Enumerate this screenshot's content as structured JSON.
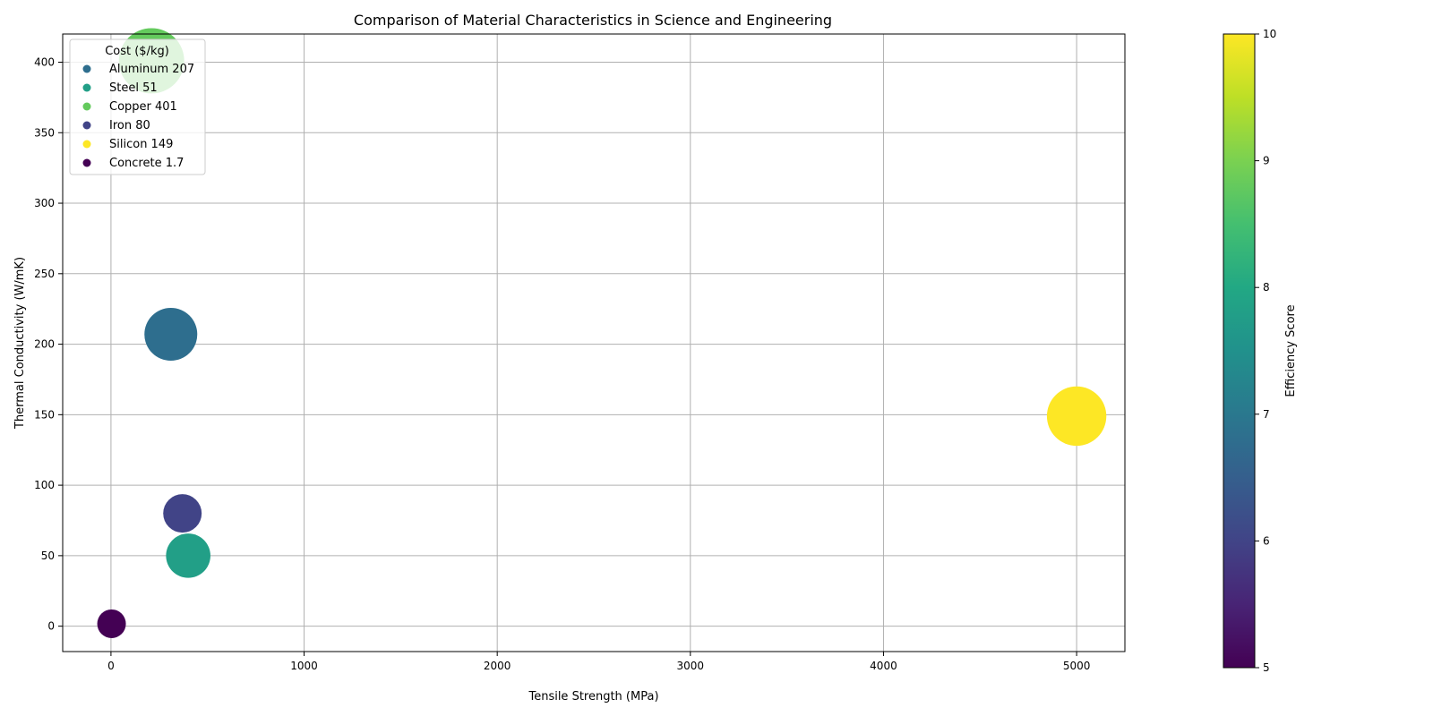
{
  "chart_data": {
    "type": "scatter",
    "title": "Comparison of Material Characteristics in Science and Engineering",
    "xlabel": "Tensile Strength (MPa)",
    "ylabel": "Thermal Conductivity (W/mK)",
    "xlim": [
      -250,
      5250
    ],
    "ylim": [
      -18,
      420
    ],
    "xticks": [
      0,
      1000,
      2000,
      3000,
      4000,
      5000
    ],
    "yticks": [
      0,
      50,
      100,
      150,
      200,
      250,
      300,
      350,
      400
    ],
    "grid": true,
    "legend": {
      "title": "Cost ($/kg)",
      "placement": "top-left",
      "entries": [
        "Aluminum 207",
        "Steel 51",
        "Copper 401",
        "Iron 80",
        "Silicon 149",
        "Concrete 1.7"
      ]
    },
    "colorbar": {
      "label": "Efficiency Score",
      "range": [
        5,
        10
      ],
      "ticks": [
        5,
        6,
        7,
        8,
        9,
        10
      ],
      "colormap": "viridis"
    },
    "points": [
      {
        "name": "Aluminum",
        "x": 310,
        "y": 207,
        "efficiency": 6.8,
        "size": 3.4
      },
      {
        "name": "Steel",
        "x": 400,
        "y": 50,
        "efficiency": 7.8,
        "size": 2.4
      },
      {
        "name": "Copper",
        "x": 210,
        "y": 401,
        "efficiency": 8.8,
        "size": 5.2
      },
      {
        "name": "Iron",
        "x": 370,
        "y": 80,
        "efficiency": 6.0,
        "size": 1.8
      },
      {
        "name": "Silicon",
        "x": 5000,
        "y": 149,
        "efficiency": 10.0,
        "size": 4.3
      },
      {
        "name": "Concrete",
        "x": 3,
        "y": 1.7,
        "efficiency": 5.0,
        "size": 1.0
      }
    ]
  }
}
